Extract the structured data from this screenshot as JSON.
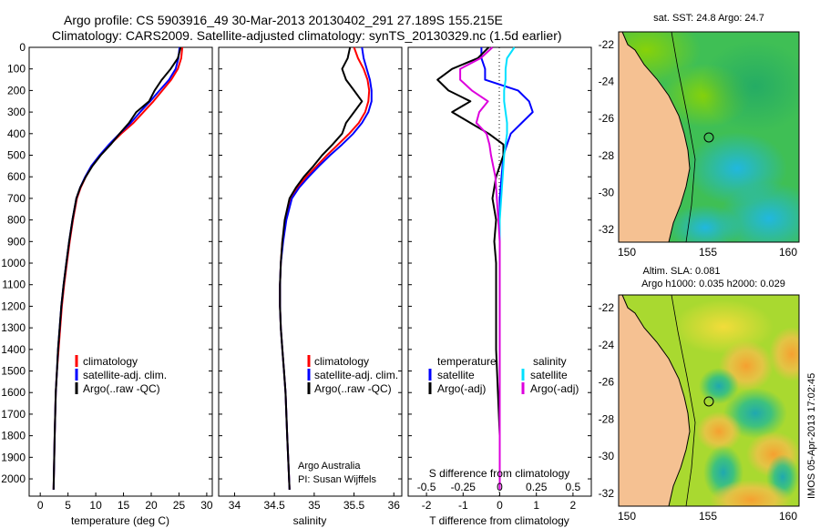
{
  "header": {
    "title_line1": "Argo profile: CS 5903916_49 30-Mar-2013 20130402_291 27.189S 155.215E",
    "title_line2": "Climatology: CARS2009. Satellite-adjusted climatology: synTS_20130329.nc (1.5d earlier)"
  },
  "colors": {
    "climatology": "#ff0000",
    "satellite": "#0000ff",
    "argo": "#000000",
    "satellite_s": "#00e0ff",
    "argo_s": "#dd00dd",
    "land": "#f5c192"
  },
  "depth_ticks": [
    "0",
    "100",
    "200",
    "300",
    "400",
    "500",
    "600",
    "700",
    "800",
    "900",
    "1000",
    "1100",
    "1200",
    "1300",
    "1400",
    "1500",
    "1600",
    "1700",
    "1800",
    "1900",
    "2000"
  ],
  "temperature_panel": {
    "xlabel": "temperature (deg C)",
    "xticks": [
      "0",
      "5",
      "10",
      "15",
      "20",
      "25",
      "30"
    ],
    "legend": [
      "climatology",
      "satellite-adj. clim.",
      "Argo(..raw -QC)"
    ]
  },
  "salinity_panel": {
    "xlabel": "salinity",
    "xticks": [
      "34",
      "34.5",
      "35",
      "35.5",
      "36"
    ],
    "legend": [
      "climatology",
      "satellite-adj. clim.",
      "Argo(..raw -QC)"
    ],
    "credit_line1": "Argo Australia",
    "credit_line2": "PI: Susan Wijffels"
  },
  "difference_panel": {
    "legend_temperature_heading": "temperature",
    "legend_salinity_heading": "salinity",
    "legend_temperature": [
      "satellite",
      "Argo(-adj)"
    ],
    "legend_salinity": [
      "satellite",
      "Argo(-adj)"
    ],
    "s_label": "S difference from climatology",
    "s_ticks": [
      "-0.5",
      "-0.25",
      "0",
      "0.25",
      "0.5"
    ],
    "t_ticks": [
      "-2",
      "-1",
      "0",
      "1",
      "2"
    ],
    "xlabel": "T difference from climatology"
  },
  "map_sst": {
    "title": "sat. SST: 24.8 Argo: 24.7",
    "lat_ticks": [
      "-22",
      "-24",
      "-26",
      "-28",
      "-30",
      "-32"
    ],
    "lon_ticks": [
      "150",
      "155",
      "160"
    ]
  },
  "map_sla": {
    "title_line1": "Altim. SLA: 0.081",
    "title_line2": "Argo h1000: 0.035 h2000: 0.029",
    "lat_ticks": [
      "-22",
      "-24",
      "-26",
      "-28",
      "-30",
      "-32"
    ],
    "lon_ticks": [
      "150",
      "155",
      "160"
    ]
  },
  "watermark": "IMOS 05-Apr-2013 17:02:45",
  "chart_data": [
    {
      "type": "line",
      "xlabel": "temperature (deg C)",
      "ylabel": "",
      "xlim": [
        -2,
        31
      ],
      "ylim": [
        2080,
        0
      ],
      "series": [
        {
          "name": "climatology",
          "x": [
            25.6,
            25.4,
            24.8,
            23.6,
            22,
            20.4,
            18.6,
            16.8,
            14.6,
            12.6,
            10.8,
            9.3,
            8.2,
            7.3,
            6.6,
            5.9,
            5.3,
            4.8,
            4.3,
            3.9,
            3.6,
            3.3,
            3.0,
            2.8,
            2.6,
            2.4
          ],
          "y": [
            0,
            50,
            100,
            150,
            200,
            250,
            300,
            350,
            400,
            450,
            500,
            550,
            600,
            650,
            700,
            800,
            900,
            1000,
            1100,
            1200,
            1300,
            1400,
            1500,
            1600,
            1800,
            2050
          ]
        },
        {
          "name": "satellite-adj. clim.",
          "x": [
            25.1,
            24.9,
            24.4,
            23.2,
            21.5,
            19.8,
            18,
            16.3,
            14.3,
            12.4,
            10.7,
            9.2,
            8.1,
            7.2,
            6.5,
            5.8,
            5.2,
            4.7,
            4.2,
            3.8,
            3.5,
            3.2,
            3.0,
            2.8,
            2.6,
            2.4
          ],
          "y": [
            0,
            50,
            100,
            150,
            200,
            250,
            300,
            350,
            400,
            450,
            500,
            550,
            600,
            650,
            700,
            800,
            900,
            1000,
            1100,
            1200,
            1300,
            1400,
            1500,
            1600,
            1800,
            2050
          ]
        },
        {
          "name": "Argo(..raw -QC)",
          "x": [
            25.3,
            24.8,
            23.5,
            21.9,
            20.6,
            19.6,
            17.3,
            16.0,
            14.3,
            12.7,
            10.9,
            9.4,
            8.2,
            7.2,
            6.5,
            5.8,
            5.2,
            4.7,
            4.2,
            3.8,
            3.5,
            3.2,
            3.0,
            2.8,
            2.6,
            2.4
          ],
          "y": [
            0,
            50,
            100,
            150,
            200,
            250,
            300,
            350,
            400,
            450,
            500,
            550,
            600,
            650,
            700,
            800,
            900,
            1000,
            1100,
            1200,
            1300,
            1400,
            1500,
            1600,
            1800,
            2050
          ]
        }
      ]
    },
    {
      "type": "line",
      "xlabel": "salinity",
      "ylabel": "",
      "xlim": [
        33.8,
        36.1
      ],
      "ylim": [
        2080,
        0
      ],
      "series": [
        {
          "name": "climatology",
          "x": [
            35.5,
            35.55,
            35.62,
            35.67,
            35.69,
            35.68,
            35.64,
            35.56,
            35.44,
            35.3,
            35.16,
            35.03,
            34.9,
            34.79,
            34.7,
            34.64,
            34.6,
            34.58,
            34.57,
            34.57,
            34.58,
            34.6,
            34.62,
            34.64,
            34.66,
            34.69
          ],
          "y": [
            0,
            50,
            100,
            150,
            200,
            250,
            300,
            350,
            400,
            450,
            500,
            550,
            600,
            650,
            700,
            800,
            900,
            1000,
            1100,
            1200,
            1300,
            1400,
            1500,
            1600,
            1800,
            2050
          ]
        },
        {
          "name": "satellite-adj. clim.",
          "x": [
            35.6,
            35.62,
            35.66,
            35.7,
            35.72,
            35.72,
            35.68,
            35.6,
            35.49,
            35.35,
            35.2,
            35.06,
            34.93,
            34.81,
            34.72,
            34.65,
            34.61,
            34.58,
            34.57,
            34.57,
            34.58,
            34.6,
            34.62,
            34.64,
            34.66,
            34.69
          ],
          "y": [
            0,
            50,
            100,
            150,
            200,
            250,
            300,
            350,
            400,
            450,
            500,
            550,
            600,
            650,
            700,
            800,
            900,
            1000,
            1100,
            1200,
            1300,
            1400,
            1500,
            1600,
            1800,
            2050
          ]
        },
        {
          "name": "Argo(..raw -QC)",
          "x": [
            35.45,
            35.42,
            35.35,
            35.4,
            35.5,
            35.6,
            35.5,
            35.4,
            35.35,
            35.23,
            35.1,
            34.99,
            34.87,
            34.77,
            34.69,
            34.63,
            34.6,
            34.58,
            34.57,
            34.57,
            34.58,
            34.6,
            34.62,
            34.64,
            34.66,
            34.69
          ],
          "y": [
            0,
            50,
            100,
            150,
            200,
            250,
            300,
            350,
            400,
            450,
            500,
            550,
            600,
            650,
            700,
            800,
            900,
            1000,
            1100,
            1200,
            1300,
            1400,
            1500,
            1600,
            1800,
            2050
          ]
        }
      ]
    },
    {
      "type": "line",
      "xlabel": "T difference from climatology",
      "ylabel": "",
      "xlim": [
        -2.5,
        2.5
      ],
      "ylim": [
        2080,
        0
      ],
      "secondary_xlabel": "S difference from climatology",
      "secondary_xlim": [
        -0.625,
        0.625
      ],
      "series": [
        {
          "name": "temperature satellite",
          "x": [
            -0.5,
            -0.5,
            -0.4,
            -0.4,
            0.5,
            0.8,
            0.9,
            0.6,
            0.3,
            0.2,
            0.1,
            0.05,
            0,
            0,
            0,
            0,
            0,
            0,
            0,
            0,
            0
          ],
          "y": [
            0,
            50,
            100,
            150,
            200,
            250,
            300,
            350,
            400,
            450,
            500,
            600,
            700,
            800,
            900,
            1000,
            1200,
            1400,
            1600,
            1800,
            2050
          ]
        },
        {
          "name": "temperature Argo(-adj)",
          "x": [
            -0.3,
            -0.6,
            -1.3,
            -1.7,
            -1.4,
            -0.8,
            -1.3,
            -0.8,
            -0.3,
            0.1,
            0.1,
            -0.1,
            -0.2,
            -0.1,
            -0.15,
            -0.1,
            -0.1,
            -0.1,
            -0.05,
            0,
            0
          ],
          "y": [
            0,
            50,
            100,
            150,
            200,
            250,
            300,
            350,
            400,
            450,
            500,
            600,
            700,
            800,
            900,
            1000,
            1200,
            1400,
            1600,
            1800,
            2050
          ]
        },
        {
          "name": "salinity satellite",
          "x": [
            0.1,
            0.05,
            0.04,
            0.04,
            0.03,
            0.03,
            0.04,
            0.05,
            0.05,
            0.04,
            0.03,
            0.02,
            0.01,
            0.0,
            0,
            0,
            0,
            0,
            0,
            0,
            0
          ],
          "y": [
            0,
            50,
            100,
            150,
            200,
            250,
            300,
            350,
            400,
            450,
            500,
            600,
            700,
            800,
            900,
            1000,
            1200,
            1400,
            1600,
            1800,
            2050
          ]
        },
        {
          "name": "salinity Argo(-adj)",
          "x": [
            -0.05,
            -0.13,
            -0.27,
            -0.27,
            -0.19,
            -0.08,
            -0.14,
            -0.16,
            -0.09,
            -0.07,
            -0.06,
            -0.03,
            -0.02,
            -0.01,
            0,
            0,
            0,
            0,
            0,
            0,
            0
          ],
          "y": [
            0,
            50,
            100,
            150,
            200,
            250,
            300,
            350,
            400,
            450,
            500,
            600,
            700,
            800,
            900,
            1000,
            1200,
            1400,
            1600,
            1800,
            2050
          ]
        }
      ]
    }
  ]
}
